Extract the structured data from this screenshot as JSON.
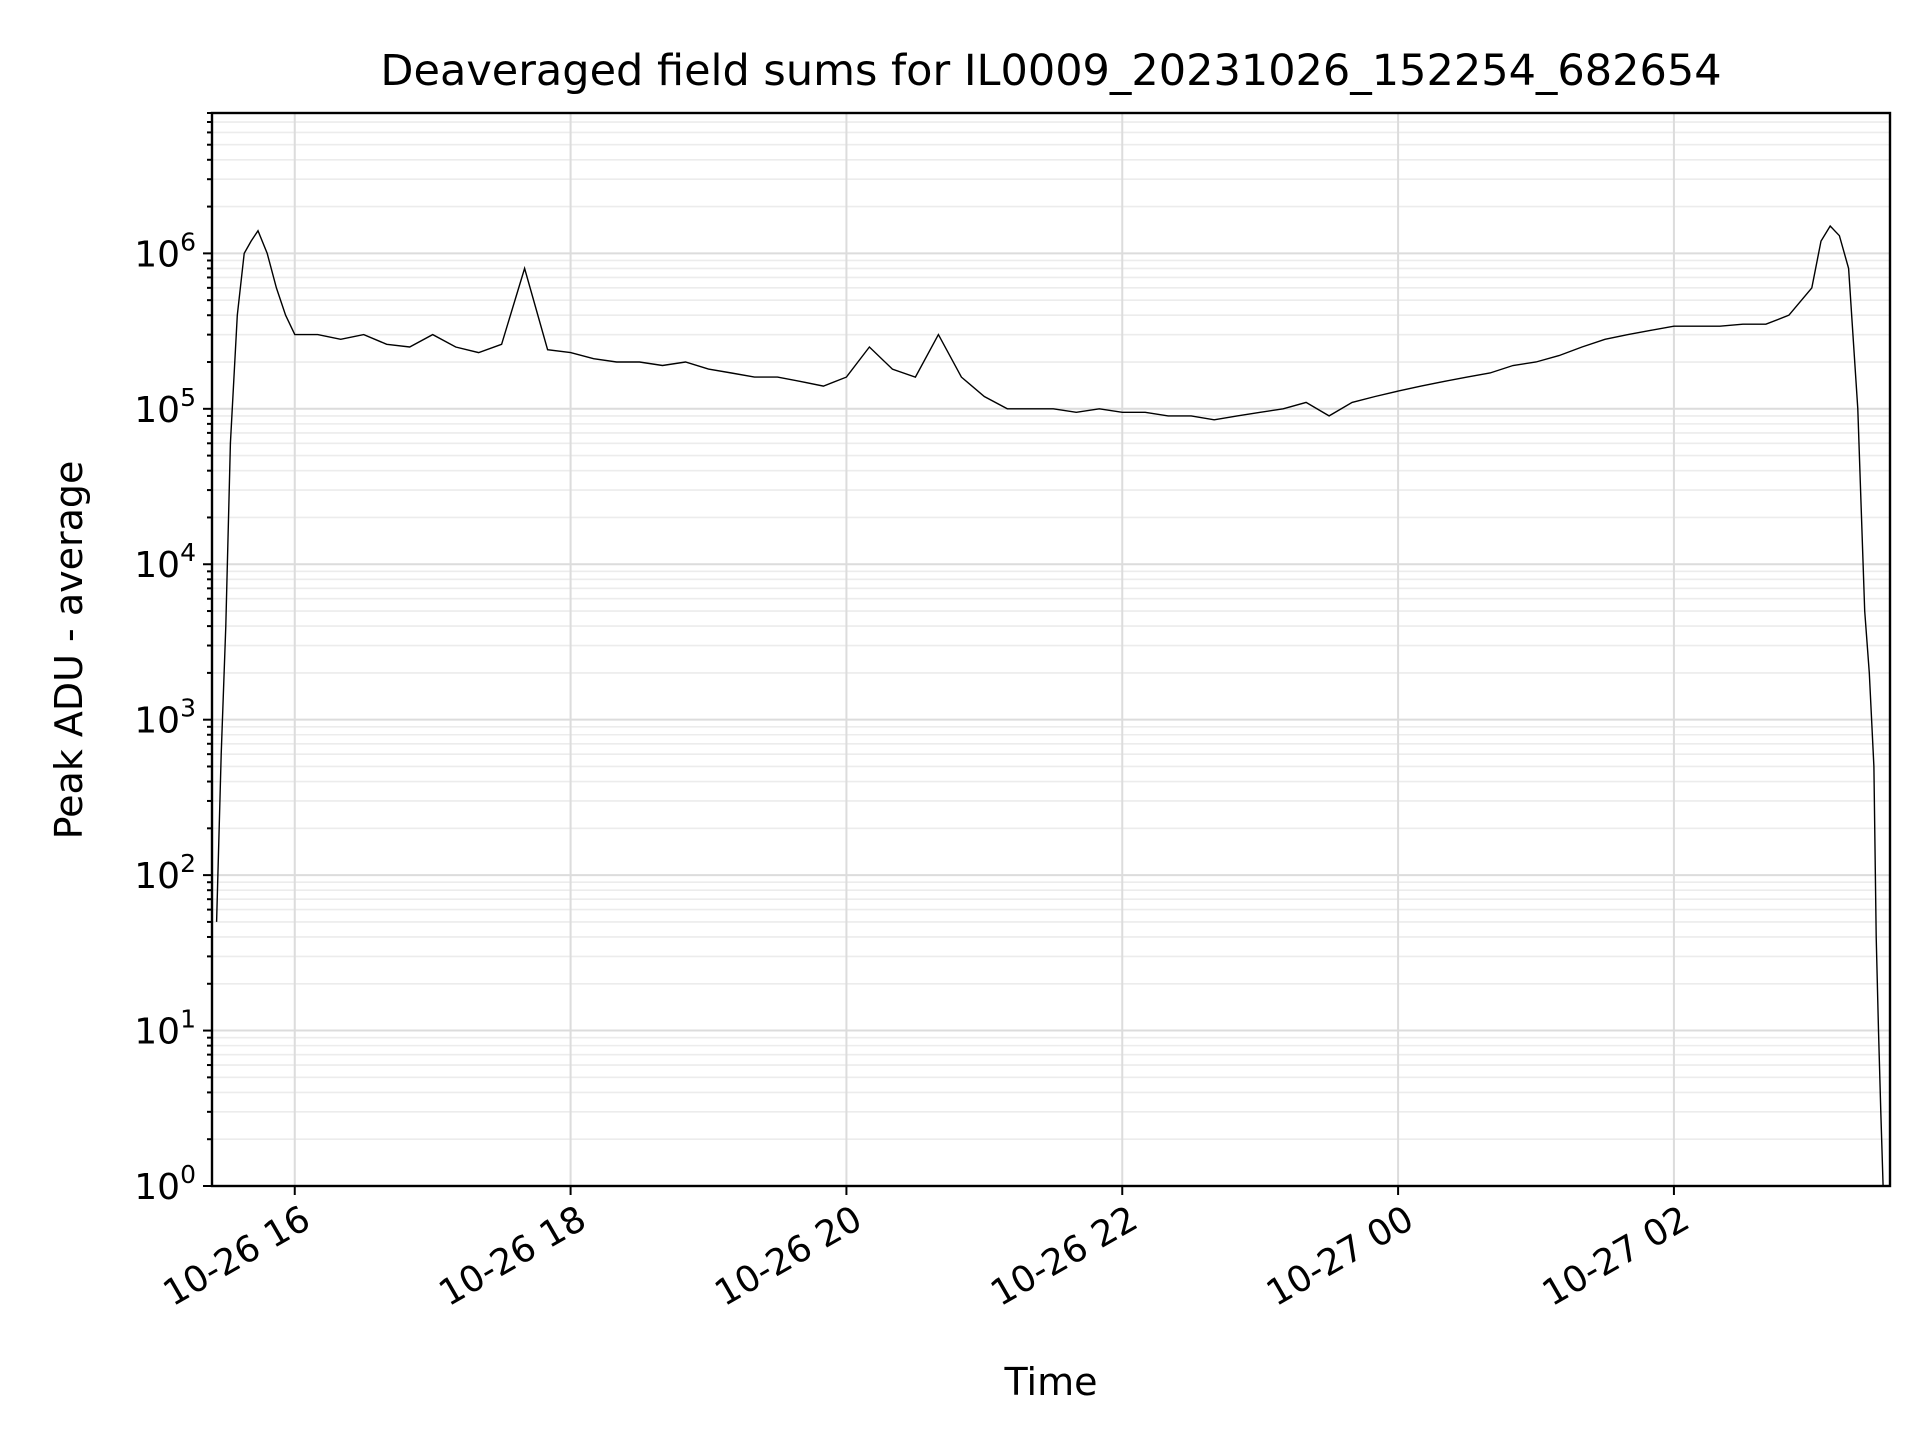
{
  "chart_data": {
    "type": "line",
    "title": "Deaveraged field sums for IL0009_20231026_152254_682654",
    "xlabel": "Time",
    "ylabel": "Peak ADU - average",
    "yscale": "log",
    "ylim": [
      1,
      8000000
    ],
    "xlim": [
      "2023-10-26T15:24",
      "2023-10-27T03:34"
    ],
    "grid": true,
    "grid_minor": true,
    "line_color": "#000000",
    "x_ticks": [
      {
        "time": "2023-10-26T16:00",
        "label": "10-26 16"
      },
      {
        "time": "2023-10-26T18:00",
        "label": "10-26 18"
      },
      {
        "time": "2023-10-26T20:00",
        "label": "10-26 20"
      },
      {
        "time": "2023-10-26T22:00",
        "label": "10-26 22"
      },
      {
        "time": "2023-10-27T00:00",
        "label": "10-27 00"
      },
      {
        "time": "2023-10-27T02:00",
        "label": "10-27 02"
      }
    ],
    "y_ticks": [
      {
        "value": 1,
        "base": "10",
        "exp": "0"
      },
      {
        "value": 10,
        "base": "10",
        "exp": "1"
      },
      {
        "value": 100,
        "base": "10",
        "exp": "2"
      },
      {
        "value": 1000,
        "base": "10",
        "exp": "3"
      },
      {
        "value": 10000,
        "base": "10",
        "exp": "4"
      },
      {
        "value": 100000,
        "base": "10",
        "exp": "5"
      },
      {
        "value": 1000000,
        "base": "10",
        "exp": "6"
      }
    ],
    "series": [
      {
        "x": [
          "2023-10-26T15:26",
          "2023-10-26T15:28",
          "2023-10-26T15:30",
          "2023-10-26T15:32",
          "2023-10-26T15:35",
          "2023-10-26T15:38",
          "2023-10-26T15:41",
          "2023-10-26T15:44",
          "2023-10-26T15:48",
          "2023-10-26T15:52",
          "2023-10-26T15:56",
          "2023-10-26T16:00",
          "2023-10-26T16:10",
          "2023-10-26T16:20",
          "2023-10-26T16:30",
          "2023-10-26T16:40",
          "2023-10-26T16:50",
          "2023-10-26T17:00",
          "2023-10-26T17:10",
          "2023-10-26T17:20",
          "2023-10-26T17:30",
          "2023-10-26T17:40",
          "2023-10-26T17:50",
          "2023-10-26T18:00",
          "2023-10-26T18:10",
          "2023-10-26T18:20",
          "2023-10-26T18:30",
          "2023-10-26T18:40",
          "2023-10-26T18:50",
          "2023-10-26T19:00",
          "2023-10-26T19:10",
          "2023-10-26T19:20",
          "2023-10-26T19:30",
          "2023-10-26T19:40",
          "2023-10-26T19:50",
          "2023-10-26T20:00",
          "2023-10-26T20:10",
          "2023-10-26T20:20",
          "2023-10-26T20:30",
          "2023-10-26T20:40",
          "2023-10-26T20:50",
          "2023-10-26T21:00",
          "2023-10-26T21:10",
          "2023-10-26T21:20",
          "2023-10-26T21:30",
          "2023-10-26T21:40",
          "2023-10-26T21:50",
          "2023-10-26T22:00",
          "2023-10-26T22:10",
          "2023-10-26T22:20",
          "2023-10-26T22:30",
          "2023-10-26T22:40",
          "2023-10-26T22:50",
          "2023-10-26T23:00",
          "2023-10-26T23:10",
          "2023-10-26T23:20",
          "2023-10-26T23:30",
          "2023-10-26T23:40",
          "2023-10-26T23:50",
          "2023-10-27T00:00",
          "2023-10-27T00:10",
          "2023-10-27T00:20",
          "2023-10-27T00:30",
          "2023-10-27T00:40",
          "2023-10-27T00:50",
          "2023-10-27T01:00",
          "2023-10-27T01:10",
          "2023-10-27T01:20",
          "2023-10-27T01:30",
          "2023-10-27T01:40",
          "2023-10-27T01:50",
          "2023-10-27T02:00",
          "2023-10-27T02:10",
          "2023-10-27T02:20",
          "2023-10-27T02:30",
          "2023-10-27T02:40",
          "2023-10-27T02:50",
          "2023-10-27T03:00",
          "2023-10-27T03:04",
          "2023-10-27T03:08",
          "2023-10-27T03:12",
          "2023-10-27T03:16",
          "2023-10-27T03:20",
          "2023-10-27T03:23",
          "2023-10-27T03:25",
          "2023-10-27T03:27",
          "2023-10-27T03:28",
          "2023-10-27T03:29",
          "2023-10-27T03:30",
          "2023-10-27T03:31"
        ],
        "values": [
          50,
          600,
          4000,
          60000,
          400000,
          1000000,
          1200000,
          1400000,
          1000000,
          600000,
          400000,
          300000,
          300000,
          280000,
          300000,
          260000,
          250000,
          300000,
          250000,
          230000,
          260000,
          800000,
          240000,
          230000,
          210000,
          200000,
          200000,
          190000,
          200000,
          180000,
          170000,
          160000,
          160000,
          150000,
          140000,
          160000,
          250000,
          180000,
          160000,
          300000,
          160000,
          120000,
          100000,
          100000,
          100000,
          95000,
          100000,
          95000,
          95000,
          90000,
          90000,
          85000,
          90000,
          95000,
          100000,
          110000,
          90000,
          110000,
          120000,
          130000,
          140000,
          150000,
          160000,
          170000,
          190000,
          200000,
          220000,
          250000,
          280000,
          300000,
          320000,
          340000,
          340000,
          340000,
          350000,
          350000,
          400000,
          600000,
          1200000,
          1500000,
          1300000,
          800000,
          100000,
          5000,
          2000,
          500,
          40,
          10,
          3,
          1
        ]
      }
    ]
  }
}
